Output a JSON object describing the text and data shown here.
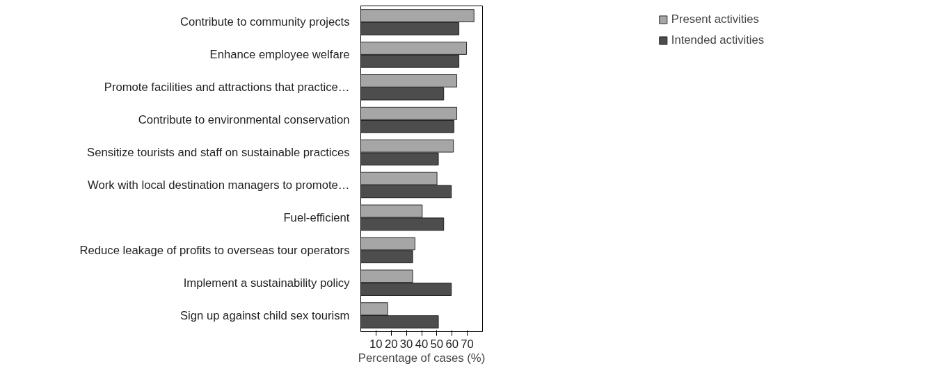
{
  "chart_data": {
    "type": "bar",
    "orientation": "horizontal",
    "xlabel": "Percentage of cases (%)",
    "categories": [
      "Contribute to community projects",
      "Enhance employee welfare",
      "Promote facilities and attractions that practice…",
      "Contribute to environmental conservation",
      "Sensitize tourists and staff on sustainable practices",
      "Work with local destination managers to promote…",
      "Fuel-efficient",
      "Reduce leakage of profits to overseas tour operators",
      "Implement a sustainability policy",
      "Sign up against child sex tourism"
    ],
    "series": [
      {
        "name": "Present activities",
        "color": "#a6a6a6",
        "values": [
          74.4,
          69.5,
          63.1,
          63.1,
          60.9,
          50.1,
          40.4,
          35.6,
          34.1,
          17.7
        ]
      },
      {
        "name": "Intended activities",
        "color": "#4d4d4d",
        "values": [
          64.5,
          64.5,
          54.5,
          61.2,
          51,
          59.5,
          54.5,
          34.1,
          59.5,
          51
        ]
      }
    ],
    "xlim": [
      0,
      80
    ],
    "xticks": [
      10,
      20,
      30,
      40,
      50,
      60,
      70
    ],
    "grid": false,
    "legend": "top right"
  }
}
